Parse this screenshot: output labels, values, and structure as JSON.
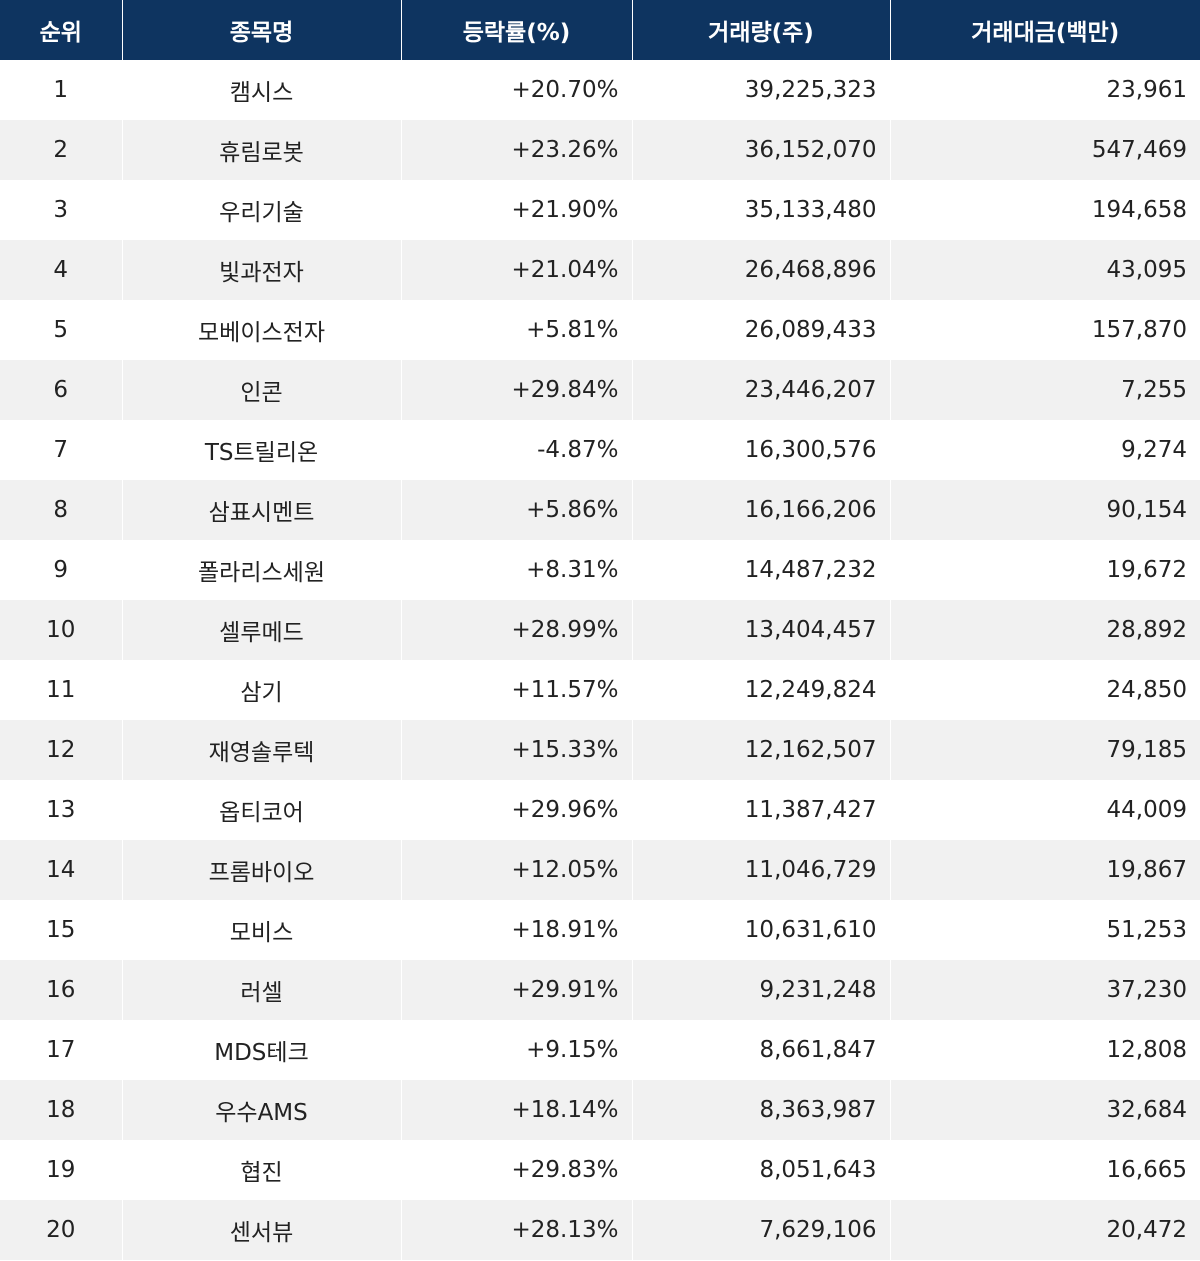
{
  "headers": {
    "rank": "순위",
    "name": "종목명",
    "change": "등락률(%)",
    "volume": "거래량(주)",
    "amount": "거래대금(백만)"
  },
  "rows": [
    {
      "rank": "1",
      "name": "캠시스",
      "change": "+20.70%",
      "volume": "39,225,323",
      "amount": "23,961"
    },
    {
      "rank": "2",
      "name": "휴림로봇",
      "change": "+23.26%",
      "volume": "36,152,070",
      "amount": "547,469"
    },
    {
      "rank": "3",
      "name": "우리기술",
      "change": "+21.90%",
      "volume": "35,133,480",
      "amount": "194,658"
    },
    {
      "rank": "4",
      "name": "빛과전자",
      "change": "+21.04%",
      "volume": "26,468,896",
      "amount": "43,095"
    },
    {
      "rank": "5",
      "name": "모베이스전자",
      "change": "+5.81%",
      "volume": "26,089,433",
      "amount": "157,870"
    },
    {
      "rank": "6",
      "name": "인콘",
      "change": "+29.84%",
      "volume": "23,446,207",
      "amount": "7,255"
    },
    {
      "rank": "7",
      "name": "TS트릴리온",
      "change": "-4.87%",
      "volume": "16,300,576",
      "amount": "9,274"
    },
    {
      "rank": "8",
      "name": "삼표시멘트",
      "change": "+5.86%",
      "volume": "16,166,206",
      "amount": "90,154"
    },
    {
      "rank": "9",
      "name": "폴라리스세원",
      "change": "+8.31%",
      "volume": "14,487,232",
      "amount": "19,672"
    },
    {
      "rank": "10",
      "name": "셀루메드",
      "change": "+28.99%",
      "volume": "13,404,457",
      "amount": "28,892"
    },
    {
      "rank": "11",
      "name": "삼기",
      "change": "+11.57%",
      "volume": "12,249,824",
      "amount": "24,850"
    },
    {
      "rank": "12",
      "name": "재영솔루텍",
      "change": "+15.33%",
      "volume": "12,162,507",
      "amount": "79,185"
    },
    {
      "rank": "13",
      "name": "옵티코어",
      "change": "+29.96%",
      "volume": "11,387,427",
      "amount": "44,009"
    },
    {
      "rank": "14",
      "name": "프롬바이오",
      "change": "+12.05%",
      "volume": "11,046,729",
      "amount": "19,867"
    },
    {
      "rank": "15",
      "name": "모비스",
      "change": "+18.91%",
      "volume": "10,631,610",
      "amount": "51,253"
    },
    {
      "rank": "16",
      "name": "러셀",
      "change": "+29.91%",
      "volume": "9,231,248",
      "amount": "37,230"
    },
    {
      "rank": "17",
      "name": "MDS테크",
      "change": "+9.15%",
      "volume": "8,661,847",
      "amount": "12,808"
    },
    {
      "rank": "18",
      "name": "우수AMS",
      "change": "+18.14%",
      "volume": "8,363,987",
      "amount": "32,684"
    },
    {
      "rank": "19",
      "name": "협진",
      "change": "+29.83%",
      "volume": "8,051,643",
      "amount": "16,665"
    },
    {
      "rank": "20",
      "name": "센서뷰",
      "change": "+28.13%",
      "volume": "7,629,106",
      "amount": "20,472"
    }
  ]
}
